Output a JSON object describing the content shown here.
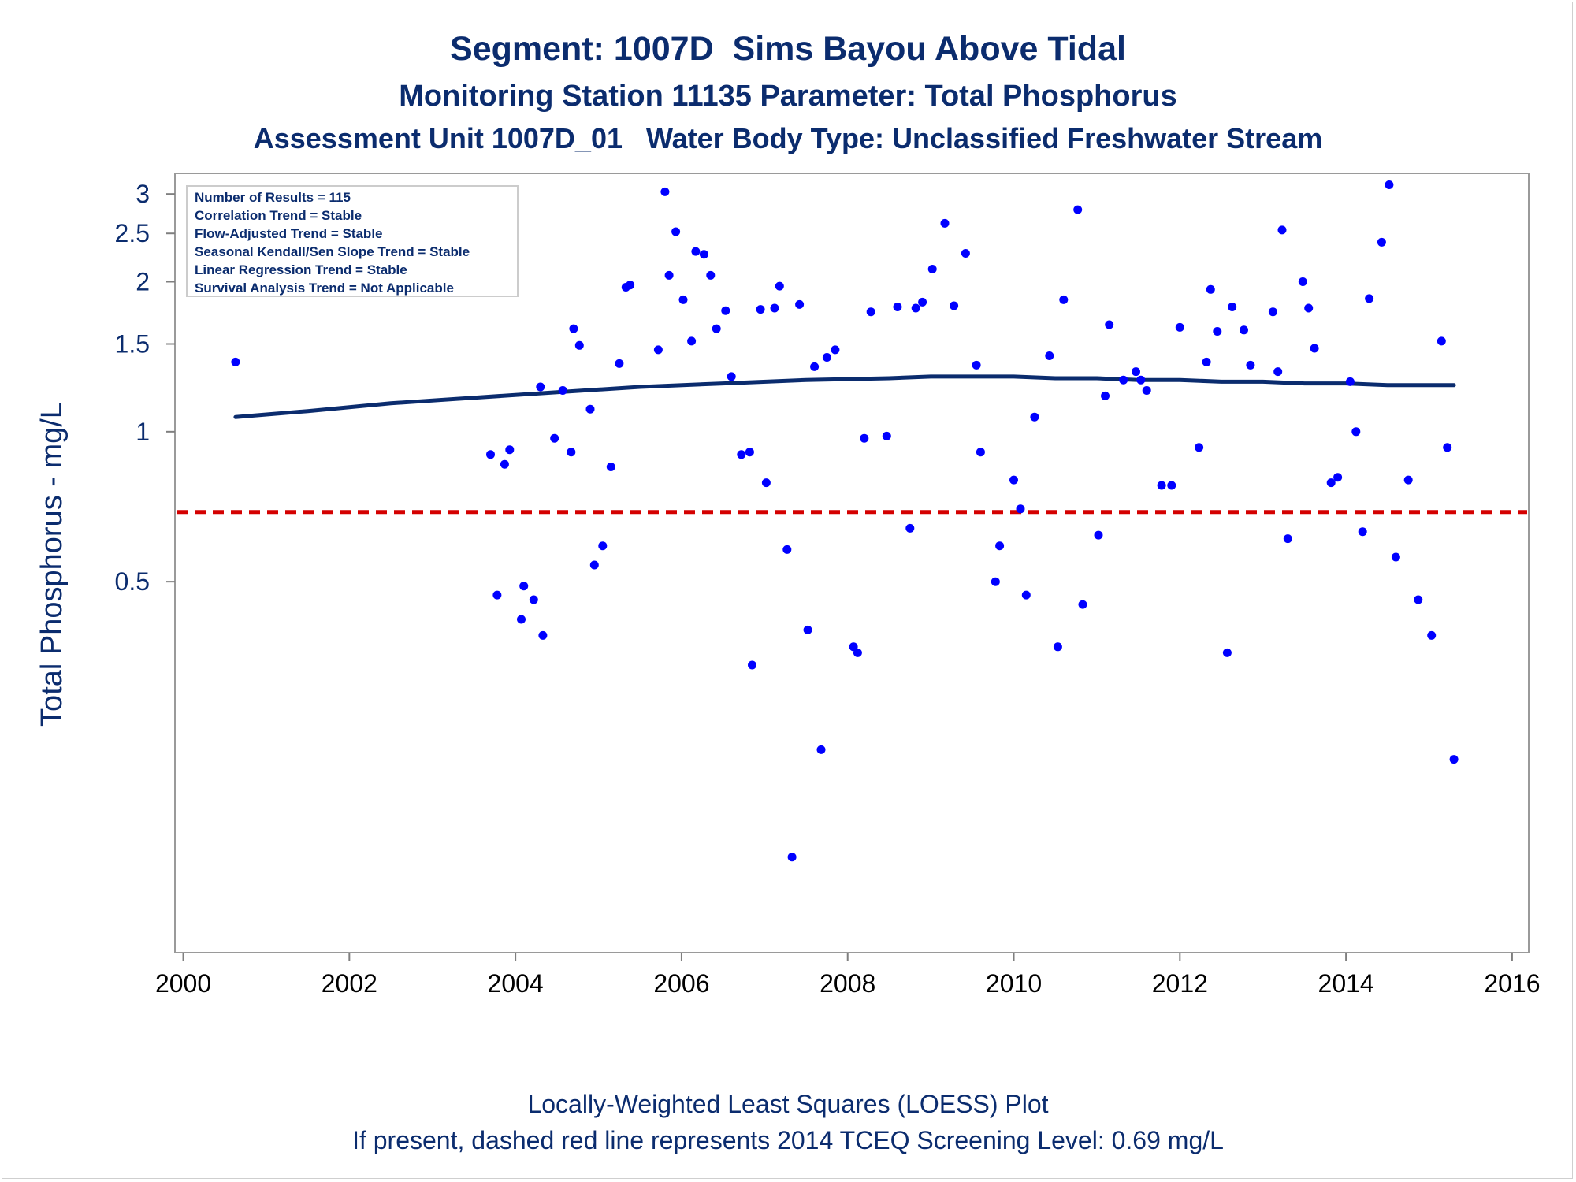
{
  "header": {
    "title": "Segment: 1007D  Sims Bayou Above Tidal",
    "subtitle": "Monitoring Station 11135 Parameter: Total Phosphorus",
    "subtitle2": "Assessment Unit 1007D_01   Water Body Type: Unclassified Freshwater Stream"
  },
  "footer": {
    "line1": "Locally-Weighted Least Squares (LOESS) Plot",
    "line2": "If present, dashed red line represents 2014 TCEQ Screening Level: 0.69 mg/L"
  },
  "stats_box": [
    "Number of Results = 115",
    "Correlation Trend = Stable",
    "Flow-Adjusted Trend = Stable",
    "Seasonal Kendall/Sen Slope Trend = Stable",
    "Linear Regression Trend = Stable",
    "Survival Analysis Trend = Not Applicable"
  ],
  "chart_data": {
    "type": "scatter",
    "ylabel": "Total Phosphorus - mg/L",
    "xlabel": "",
    "y_scale": "log",
    "xlim": [
      1999.9,
      2016.2
    ],
    "ylim": [
      0.09,
      3.3
    ],
    "x_ticks": [
      2000,
      2002,
      2004,
      2006,
      2008,
      2010,
      2012,
      2014,
      2016
    ],
    "y_ticks": [
      {
        "value": 0.5,
        "label": "0.5"
      },
      {
        "value": 1,
        "label": "1"
      },
      {
        "value": 1.5,
        "label": "1.5"
      },
      {
        "value": 2,
        "label": "2"
      },
      {
        "value": 2.5,
        "label": "2.5"
      },
      {
        "value": 3,
        "label": "3"
      }
    ],
    "point_color": "#0000ff",
    "trend_color": "#0b2c6e",
    "screening_level": {
      "value": 0.69,
      "color": "#d40000"
    },
    "series": [
      {
        "type": "scatter",
        "x": [
          2000.63,
          2003.7,
          2003.78,
          2003.87,
          2003.93,
          2004.07,
          2004.1,
          2004.22,
          2004.3,
          2004.33,
          2004.47,
          2004.57,
          2004.67,
          2004.7,
          2004.77,
          2004.9,
          2004.95,
          2005.05,
          2005.15,
          2005.25,
          2005.33,
          2005.38,
          2005.72,
          2005.8,
          2005.85,
          2005.93,
          2006.02,
          2006.12,
          2006.17,
          2006.27,
          2006.35,
          2006.42,
          2006.53,
          2006.6,
          2006.72,
          2006.82,
          2006.85,
          2006.95,
          2007.02,
          2007.12,
          2007.18,
          2007.27,
          2007.33,
          2007.42,
          2007.52,
          2007.6,
          2007.68,
          2007.75,
          2007.85,
          2008.07,
          2008.12,
          2008.2,
          2008.28,
          2008.47,
          2008.6,
          2008.75,
          2008.82,
          2008.9,
          2009.02,
          2009.17,
          2009.28,
          2009.42,
          2009.55,
          2009.6,
          2009.78,
          2009.83,
          2010.0,
          2010.08,
          2010.15,
          2010.25,
          2010.43,
          2010.53,
          2010.6,
          2010.77,
          2010.83,
          2011.02,
          2011.1,
          2011.15,
          2011.32,
          2011.47,
          2011.53,
          2011.6,
          2011.78,
          2011.9,
          2012.0,
          2012.23,
          2012.32,
          2012.37,
          2012.45,
          2012.57,
          2012.63,
          2012.77,
          2012.85,
          2013.12,
          2013.18,
          2013.23,
          2013.3,
          2013.48,
          2013.55,
          2013.62,
          2013.82,
          2013.9,
          2014.05,
          2014.12,
          2014.2,
          2014.28,
          2014.43,
          2014.52,
          2014.6,
          2014.75,
          2014.87,
          2015.03,
          2015.15,
          2015.22,
          2015.3
        ],
        "values": [
          1.38,
          0.9,
          0.47,
          0.86,
          0.92,
          0.42,
          0.49,
          0.46,
          1.23,
          0.39,
          0.97,
          1.21,
          0.91,
          1.61,
          1.49,
          1.11,
          0.54,
          0.59,
          0.85,
          1.37,
          1.95,
          1.97,
          1.46,
          3.03,
          2.06,
          2.52,
          1.84,
          1.52,
          2.3,
          2.27,
          2.06,
          1.61,
          1.75,
          1.29,
          0.9,
          0.91,
          0.34,
          1.76,
          0.79,
          1.77,
          1.96,
          0.58,
          0.14,
          1.8,
          0.4,
          1.35,
          0.23,
          1.41,
          1.46,
          0.37,
          0.36,
          0.97,
          1.74,
          0.98,
          1.78,
          0.64,
          1.77,
          1.82,
          2.12,
          2.62,
          1.79,
          2.28,
          1.36,
          0.91,
          0.5,
          0.59,
          0.8,
          0.7,
          0.47,
          1.07,
          1.42,
          0.37,
          1.84,
          2.79,
          0.45,
          0.62,
          1.18,
          1.64,
          1.27,
          1.32,
          1.27,
          1.21,
          0.78,
          0.78,
          1.62,
          0.93,
          1.38,
          1.93,
          1.59,
          0.36,
          1.78,
          1.6,
          1.36,
          1.74,
          1.32,
          2.54,
          0.61,
          2.0,
          1.77,
          1.47,
          0.79,
          0.81,
          1.26,
          1.0,
          0.63,
          1.85,
          2.4,
          3.13,
          0.56,
          0.8,
          0.46,
          0.39,
          1.52,
          0.93,
          0.22
        ]
      },
      {
        "type": "line",
        "name": "LOESS",
        "x": [
          2000.63,
          2001.5,
          2002.5,
          2003.5,
          2004.5,
          2005.5,
          2006.5,
          2007.5,
          2008.5,
          2009.0,
          2009.5,
          2010.0,
          2010.5,
          2011.0,
          2011.5,
          2012.0,
          2012.5,
          2013.0,
          2013.5,
          2014.0,
          2014.5,
          2015.3
        ],
        "values": [
          1.07,
          1.1,
          1.14,
          1.17,
          1.2,
          1.23,
          1.25,
          1.27,
          1.28,
          1.29,
          1.29,
          1.29,
          1.28,
          1.28,
          1.27,
          1.27,
          1.26,
          1.26,
          1.25,
          1.25,
          1.24,
          1.24
        ]
      }
    ]
  }
}
